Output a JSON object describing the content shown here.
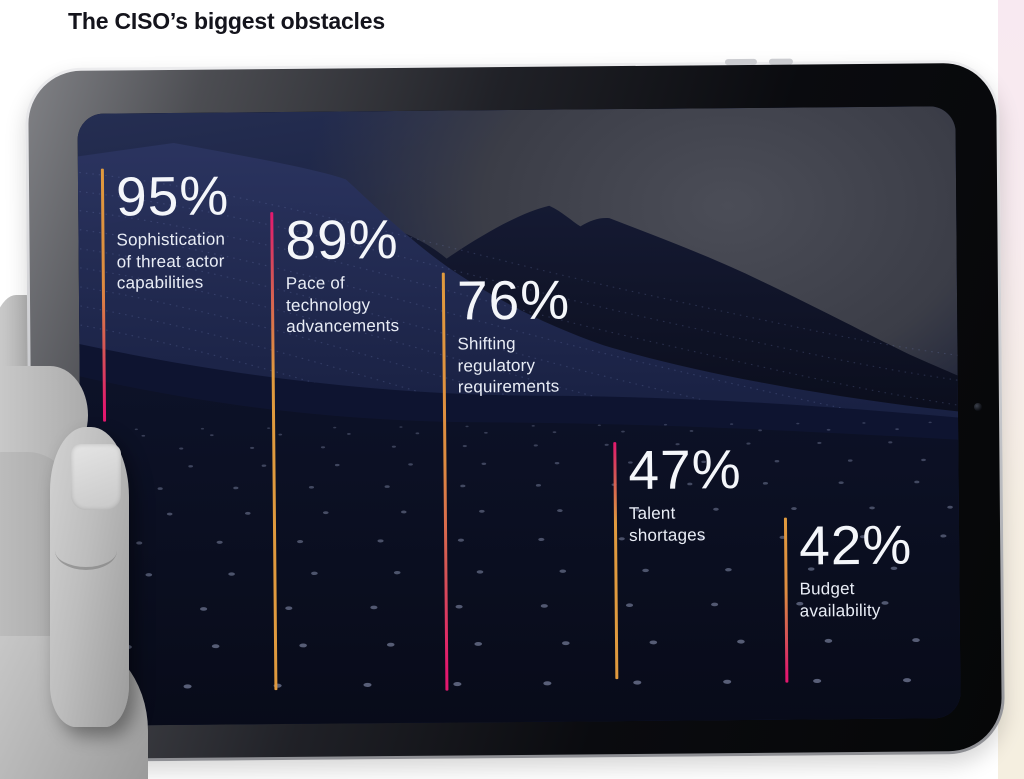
{
  "header": {
    "title": "The CISO’s biggest obstacles"
  },
  "device": {
    "kind": "tablet held in left hand",
    "orientation": "landscape"
  },
  "colors": {
    "accent_orange": "#E09A3E",
    "accent_magenta": "#E3186E",
    "screen_navy": "#141B38",
    "title_text": "#14141C",
    "stat_text": "#F4F6FA",
    "right_strip_top": "#F8E9F1",
    "right_strip_bottom": "#F5EFE0"
  },
  "stats": [
    {
      "value": "95%",
      "label": "Sophistication\nof threat actor\ncapabilities",
      "line_gradient": "orange-to-magenta"
    },
    {
      "value": "89%",
      "label": "Pace of\ntechnology\nadvancements",
      "line_gradient": "magenta-to-orange"
    },
    {
      "value": "76%",
      "label": "Shifting\nregulatory\nrequirements",
      "line_gradient": "orange-to-magenta"
    },
    {
      "value": "47%",
      "label": "Talent\nshortages",
      "line_gradient": "magenta-to-orange"
    },
    {
      "value": "42%",
      "label": "Budget\navailability",
      "line_gradient": "orange-to-magenta"
    }
  ],
  "chart_data": {
    "type": "bar",
    "title": "The CISO’s biggest obstacles",
    "categories": [
      "Sophistication of threat actor capabilities",
      "Pace of technology advancements",
      "Shifting regulatory requirements",
      "Talent shortages",
      "Budget availability"
    ],
    "values": [
      95,
      89,
      76,
      47,
      42
    ],
    "unit": "%",
    "ylim": [
      0,
      100
    ],
    "legend": false,
    "grid": false,
    "notes": "Percentages shown as large labels with vertical gradient accent lines on a dark particle-landscape background"
  }
}
